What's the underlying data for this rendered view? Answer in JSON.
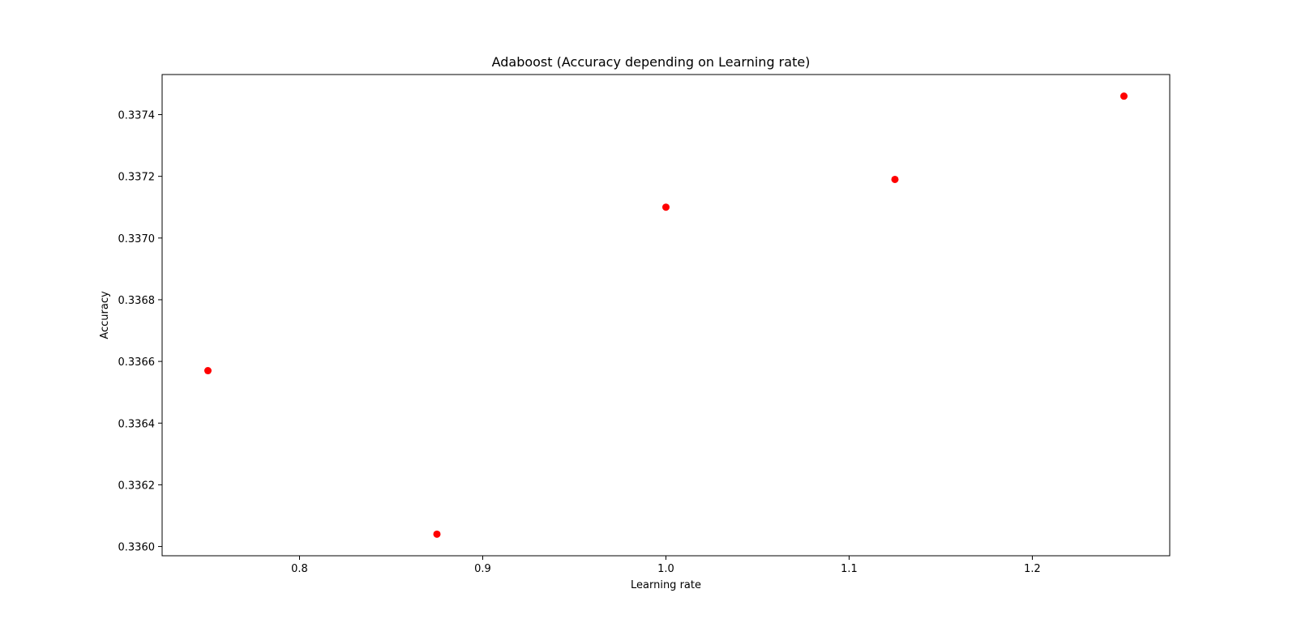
{
  "chart_data": {
    "type": "scatter",
    "title": "Adaboost (Accuracy depending on Learning rate)",
    "xlabel": "Learning rate",
    "ylabel": "Accuracy",
    "xlim": [
      0.725,
      1.275
    ],
    "ylim": [
      0.33597,
      0.33753
    ],
    "xticks": [
      0.8,
      0.9,
      1.0,
      1.1,
      1.2
    ],
    "xtick_labels": [
      "0.8",
      "0.9",
      "1.0",
      "1.1",
      "1.2"
    ],
    "yticks": [
      0.336,
      0.3362,
      0.3364,
      0.3366,
      0.3368,
      0.337,
      0.3372,
      0.3374
    ],
    "ytick_labels": [
      "0.3360",
      "0.3362",
      "0.3364",
      "0.3366",
      "0.3368",
      "0.3370",
      "0.3372",
      "0.3374"
    ],
    "grid": false,
    "marker_color": "#ff0000",
    "points": [
      {
        "x": 0.75,
        "y": 0.33657
      },
      {
        "x": 0.875,
        "y": 0.33604
      },
      {
        "x": 1.0,
        "y": 0.3371
      },
      {
        "x": 1.125,
        "y": 0.33719
      },
      {
        "x": 1.25,
        "y": 0.33746
      }
    ]
  }
}
